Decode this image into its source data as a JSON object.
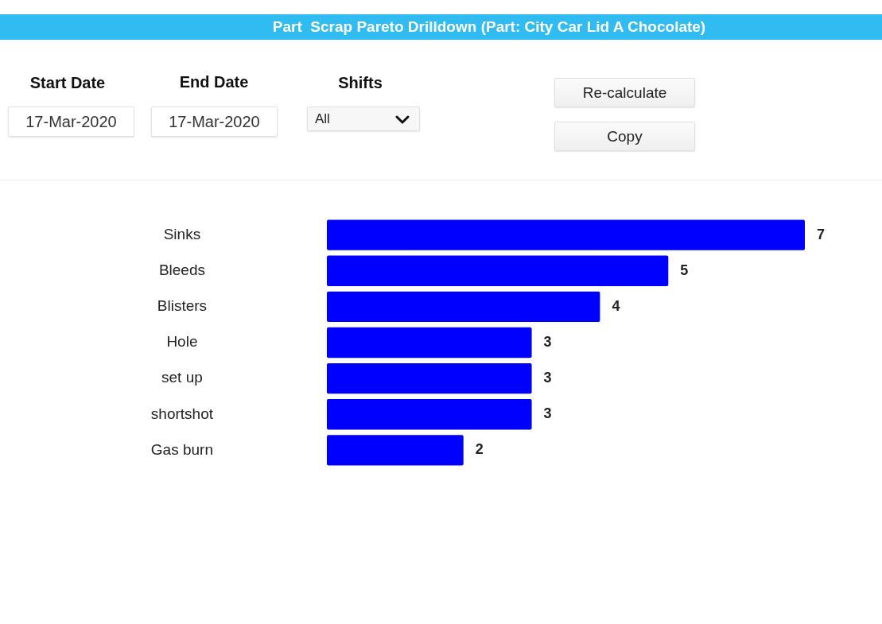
{
  "chart_data": {
    "type": "bar",
    "orientation": "horizontal",
    "title": "Part  Scrap Pareto Drilldown (Part: City Car Lid A Chocolate)",
    "categories": [
      "Sinks",
      "Bleeds",
      "Blisters",
      "Hole",
      "set up",
      "shortshot",
      "Gas burn"
    ],
    "values": [
      7,
      5,
      4,
      3,
      3,
      3,
      2
    ],
    "color": "#0000ff",
    "data_labels": true,
    "tick_labels": "y",
    "grid": false,
    "annotations": [
      "Start Date",
      "17-Mar-2020",
      "End Date",
      "17-Mar-2020",
      "Shifts",
      "All",
      "Re-calculate",
      "Copy"
    ]
  }
}
